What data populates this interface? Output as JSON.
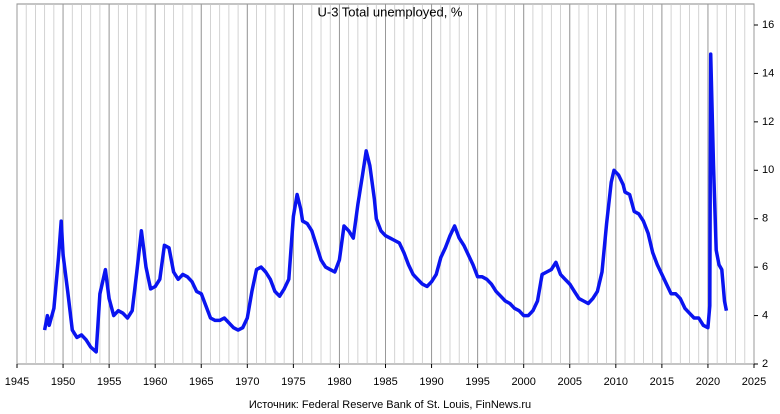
{
  "chart_data": {
    "type": "line",
    "title": "U-3 Total unemployed, %",
    "source": "Источник: Federal Reserve Bank of St. Louis, FinNews.ru",
    "xlim": [
      1945,
      2025
    ],
    "xticks": [
      1945,
      1950,
      1955,
      1960,
      1965,
      1970,
      1975,
      1980,
      1985,
      1990,
      1995,
      2000,
      2005,
      2010,
      2015,
      2020,
      2025
    ],
    "ylim": [
      2,
      16
    ],
    "yticks": [
      2,
      4,
      6,
      8,
      10,
      12,
      14,
      16
    ],
    "grid": true,
    "x": [
      1948.0,
      1948.3,
      1948.5,
      1949.0,
      1949.5,
      1949.8,
      1950.0,
      1950.5,
      1951.0,
      1951.5,
      1952.0,
      1952.5,
      1953.0,
      1953.6,
      1954.0,
      1954.6,
      1955.0,
      1955.5,
      1956.0,
      1956.5,
      1957.0,
      1957.5,
      1958.0,
      1958.5,
      1959.0,
      1959.5,
      1960.0,
      1960.5,
      1961.0,
      1961.5,
      1962.0,
      1962.5,
      1963.0,
      1963.5,
      1964.0,
      1964.5,
      1965.0,
      1965.5,
      1966.0,
      1966.5,
      1967.0,
      1967.5,
      1968.0,
      1968.5,
      1969.0,
      1969.5,
      1970.0,
      1970.5,
      1971.0,
      1971.5,
      1972.0,
      1972.5,
      1973.0,
      1973.5,
      1974.0,
      1974.5,
      1975.0,
      1975.4,
      1975.8,
      1976.0,
      1976.5,
      1977.0,
      1977.5,
      1978.0,
      1978.5,
      1979.0,
      1979.5,
      1980.0,
      1980.5,
      1981.0,
      1981.5,
      1982.0,
      1982.5,
      1982.9,
      1983.3,
      1983.8,
      1984.0,
      1984.5,
      1985.0,
      1985.5,
      1986.0,
      1986.5,
      1987.0,
      1987.5,
      1988.0,
      1988.5,
      1989.0,
      1989.5,
      1990.0,
      1990.5,
      1991.0,
      1991.5,
      1992.0,
      1992.5,
      1993.0,
      1993.5,
      1994.0,
      1994.5,
      1995.0,
      1995.5,
      1996.0,
      1996.5,
      1997.0,
      1997.5,
      1998.0,
      1998.5,
      1999.0,
      1999.5,
      2000.0,
      2000.5,
      2001.0,
      2001.5,
      2002.0,
      2002.5,
      2003.0,
      2003.5,
      2004.0,
      2004.5,
      2005.0,
      2005.5,
      2006.0,
      2006.5,
      2007.0,
      2007.5,
      2008.0,
      2008.5,
      2009.0,
      2009.5,
      2009.8,
      2010.3,
      2010.8,
      2011.0,
      2011.5,
      2012.0,
      2012.5,
      2013.0,
      2013.5,
      2014.0,
      2014.5,
      2015.0,
      2015.5,
      2016.0,
      2016.5,
      2017.0,
      2017.5,
      2018.0,
      2018.5,
      2019.0,
      2019.5,
      2020.0,
      2020.2,
      2020.3,
      2020.6,
      2020.9,
      2021.2,
      2021.5,
      2021.8,
      2022.0
    ],
    "series": [
      {
        "name": "U-3",
        "color": "#0a14f0",
        "values": [
          3.4,
          4.0,
          3.6,
          4.3,
          6.4,
          7.9,
          6.5,
          5.0,
          3.4,
          3.1,
          3.2,
          3.0,
          2.7,
          2.5,
          4.9,
          5.9,
          4.7,
          4.0,
          4.2,
          4.1,
          3.9,
          4.2,
          5.8,
          7.5,
          6.0,
          5.1,
          5.2,
          5.5,
          6.9,
          6.8,
          5.8,
          5.5,
          5.7,
          5.6,
          5.4,
          5.0,
          4.9,
          4.4,
          3.9,
          3.8,
          3.8,
          3.9,
          3.7,
          3.5,
          3.4,
          3.5,
          3.9,
          5.0,
          5.9,
          6.0,
          5.8,
          5.5,
          5.0,
          4.8,
          5.1,
          5.5,
          8.1,
          9.0,
          8.4,
          7.9,
          7.8,
          7.5,
          6.9,
          6.3,
          6.0,
          5.9,
          5.8,
          6.3,
          7.7,
          7.5,
          7.2,
          8.6,
          9.8,
          10.8,
          10.2,
          8.8,
          8.0,
          7.5,
          7.3,
          7.2,
          7.1,
          7.0,
          6.6,
          6.1,
          5.7,
          5.5,
          5.3,
          5.2,
          5.4,
          5.7,
          6.4,
          6.8,
          7.3,
          7.7,
          7.2,
          6.9,
          6.5,
          6.1,
          5.6,
          5.6,
          5.5,
          5.3,
          5.0,
          4.8,
          4.6,
          4.5,
          4.3,
          4.2,
          4.0,
          4.0,
          4.2,
          4.6,
          5.7,
          5.8,
          5.9,
          6.2,
          5.7,
          5.5,
          5.3,
          5.0,
          4.7,
          4.6,
          4.5,
          4.7,
          5.0,
          5.8,
          7.8,
          9.5,
          10.0,
          9.8,
          9.4,
          9.1,
          9.0,
          8.3,
          8.2,
          7.9,
          7.4,
          6.6,
          6.1,
          5.7,
          5.3,
          4.9,
          4.9,
          4.7,
          4.3,
          4.1,
          3.9,
          3.9,
          3.6,
          3.5,
          4.4,
          14.8,
          10.2,
          6.7,
          6.1,
          5.9,
          4.6,
          4.2
        ]
      }
    ]
  }
}
